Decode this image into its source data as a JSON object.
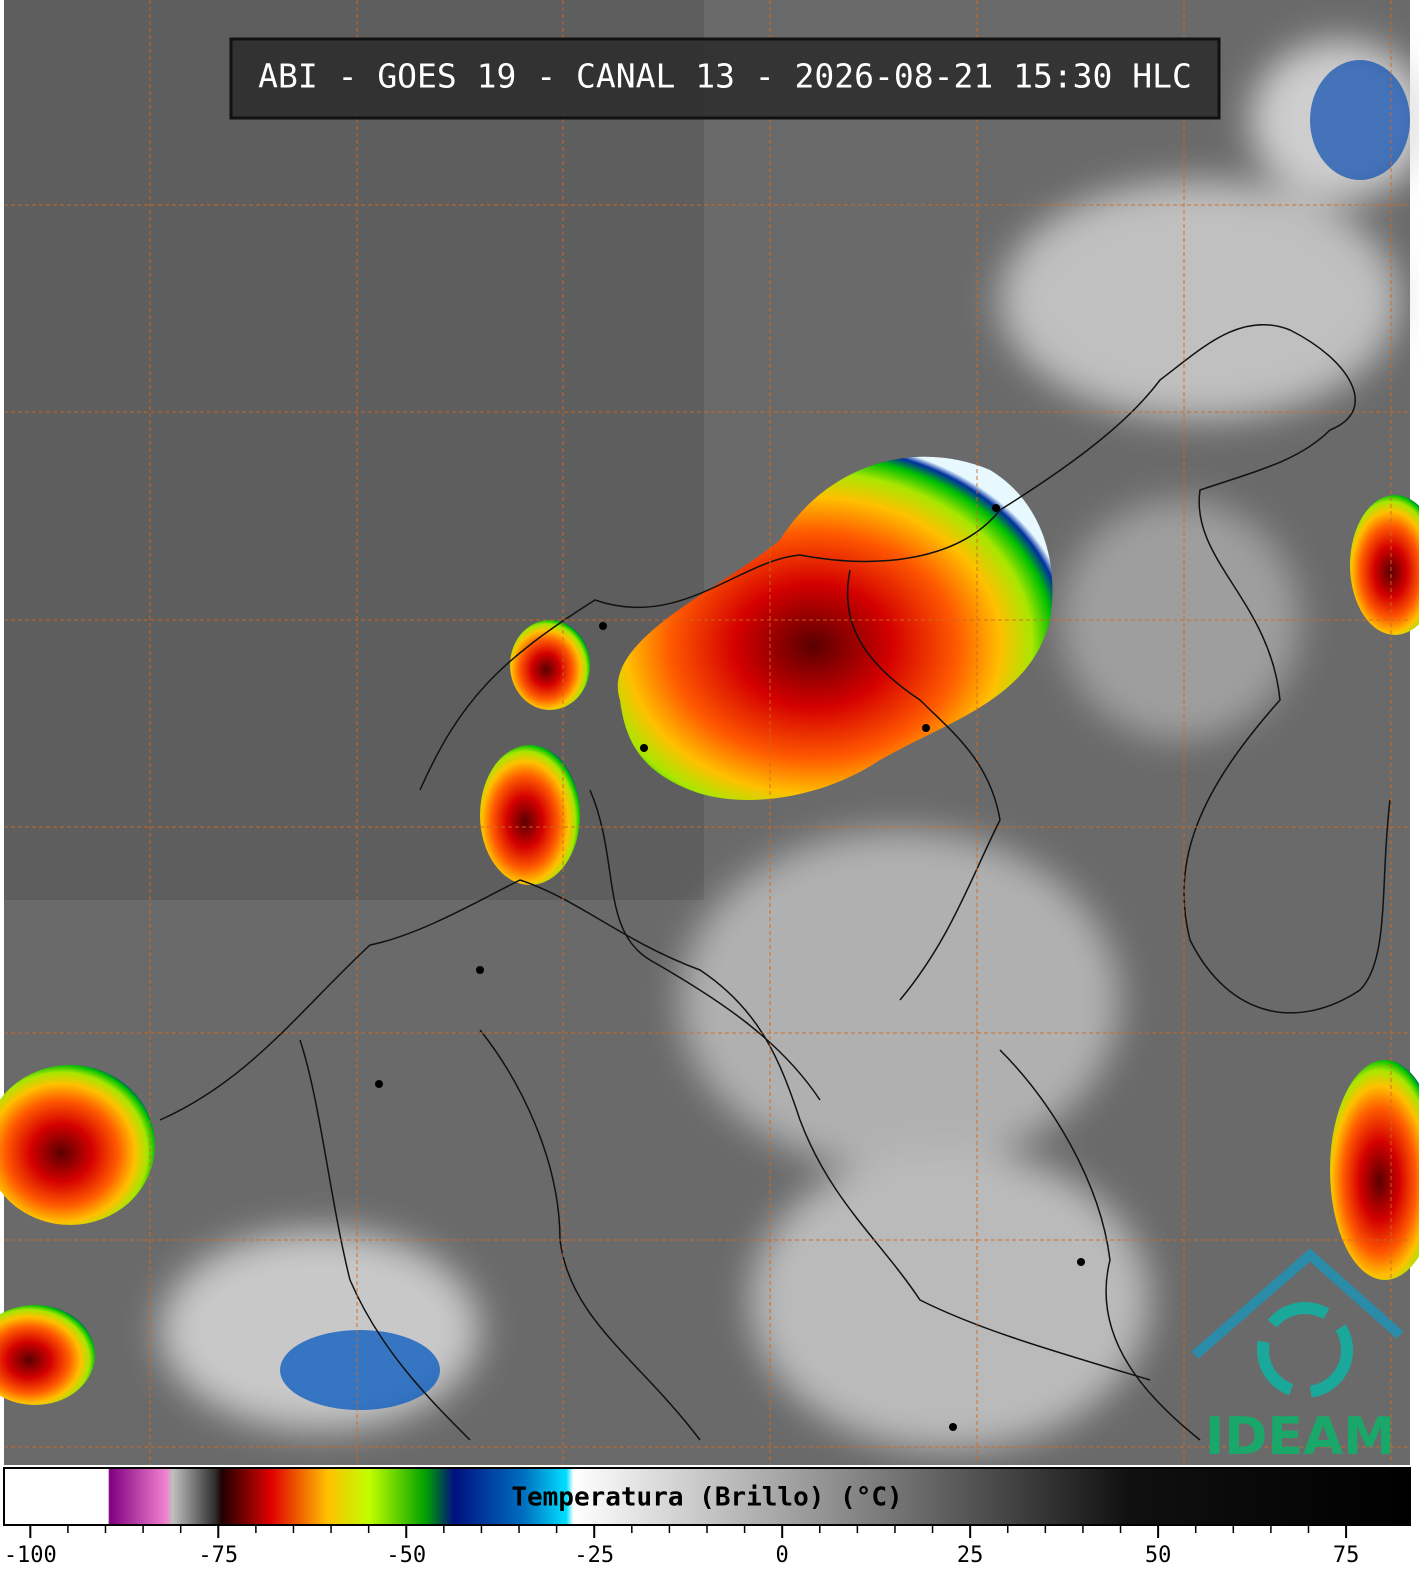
{
  "header": {
    "title": "ABI - GOES 19 - CANAL 13 - 2026-08-21 15:30 HLC"
  },
  "logo": {
    "text": "IDEAM"
  },
  "colorbar": {
    "label": "Temperatura (Brillo) (°C)",
    "xlim": [
      -103.5,
      83.5
    ],
    "xticks": [
      -100,
      -75,
      -50,
      -25,
      0,
      25,
      50,
      75
    ]
  }
}
